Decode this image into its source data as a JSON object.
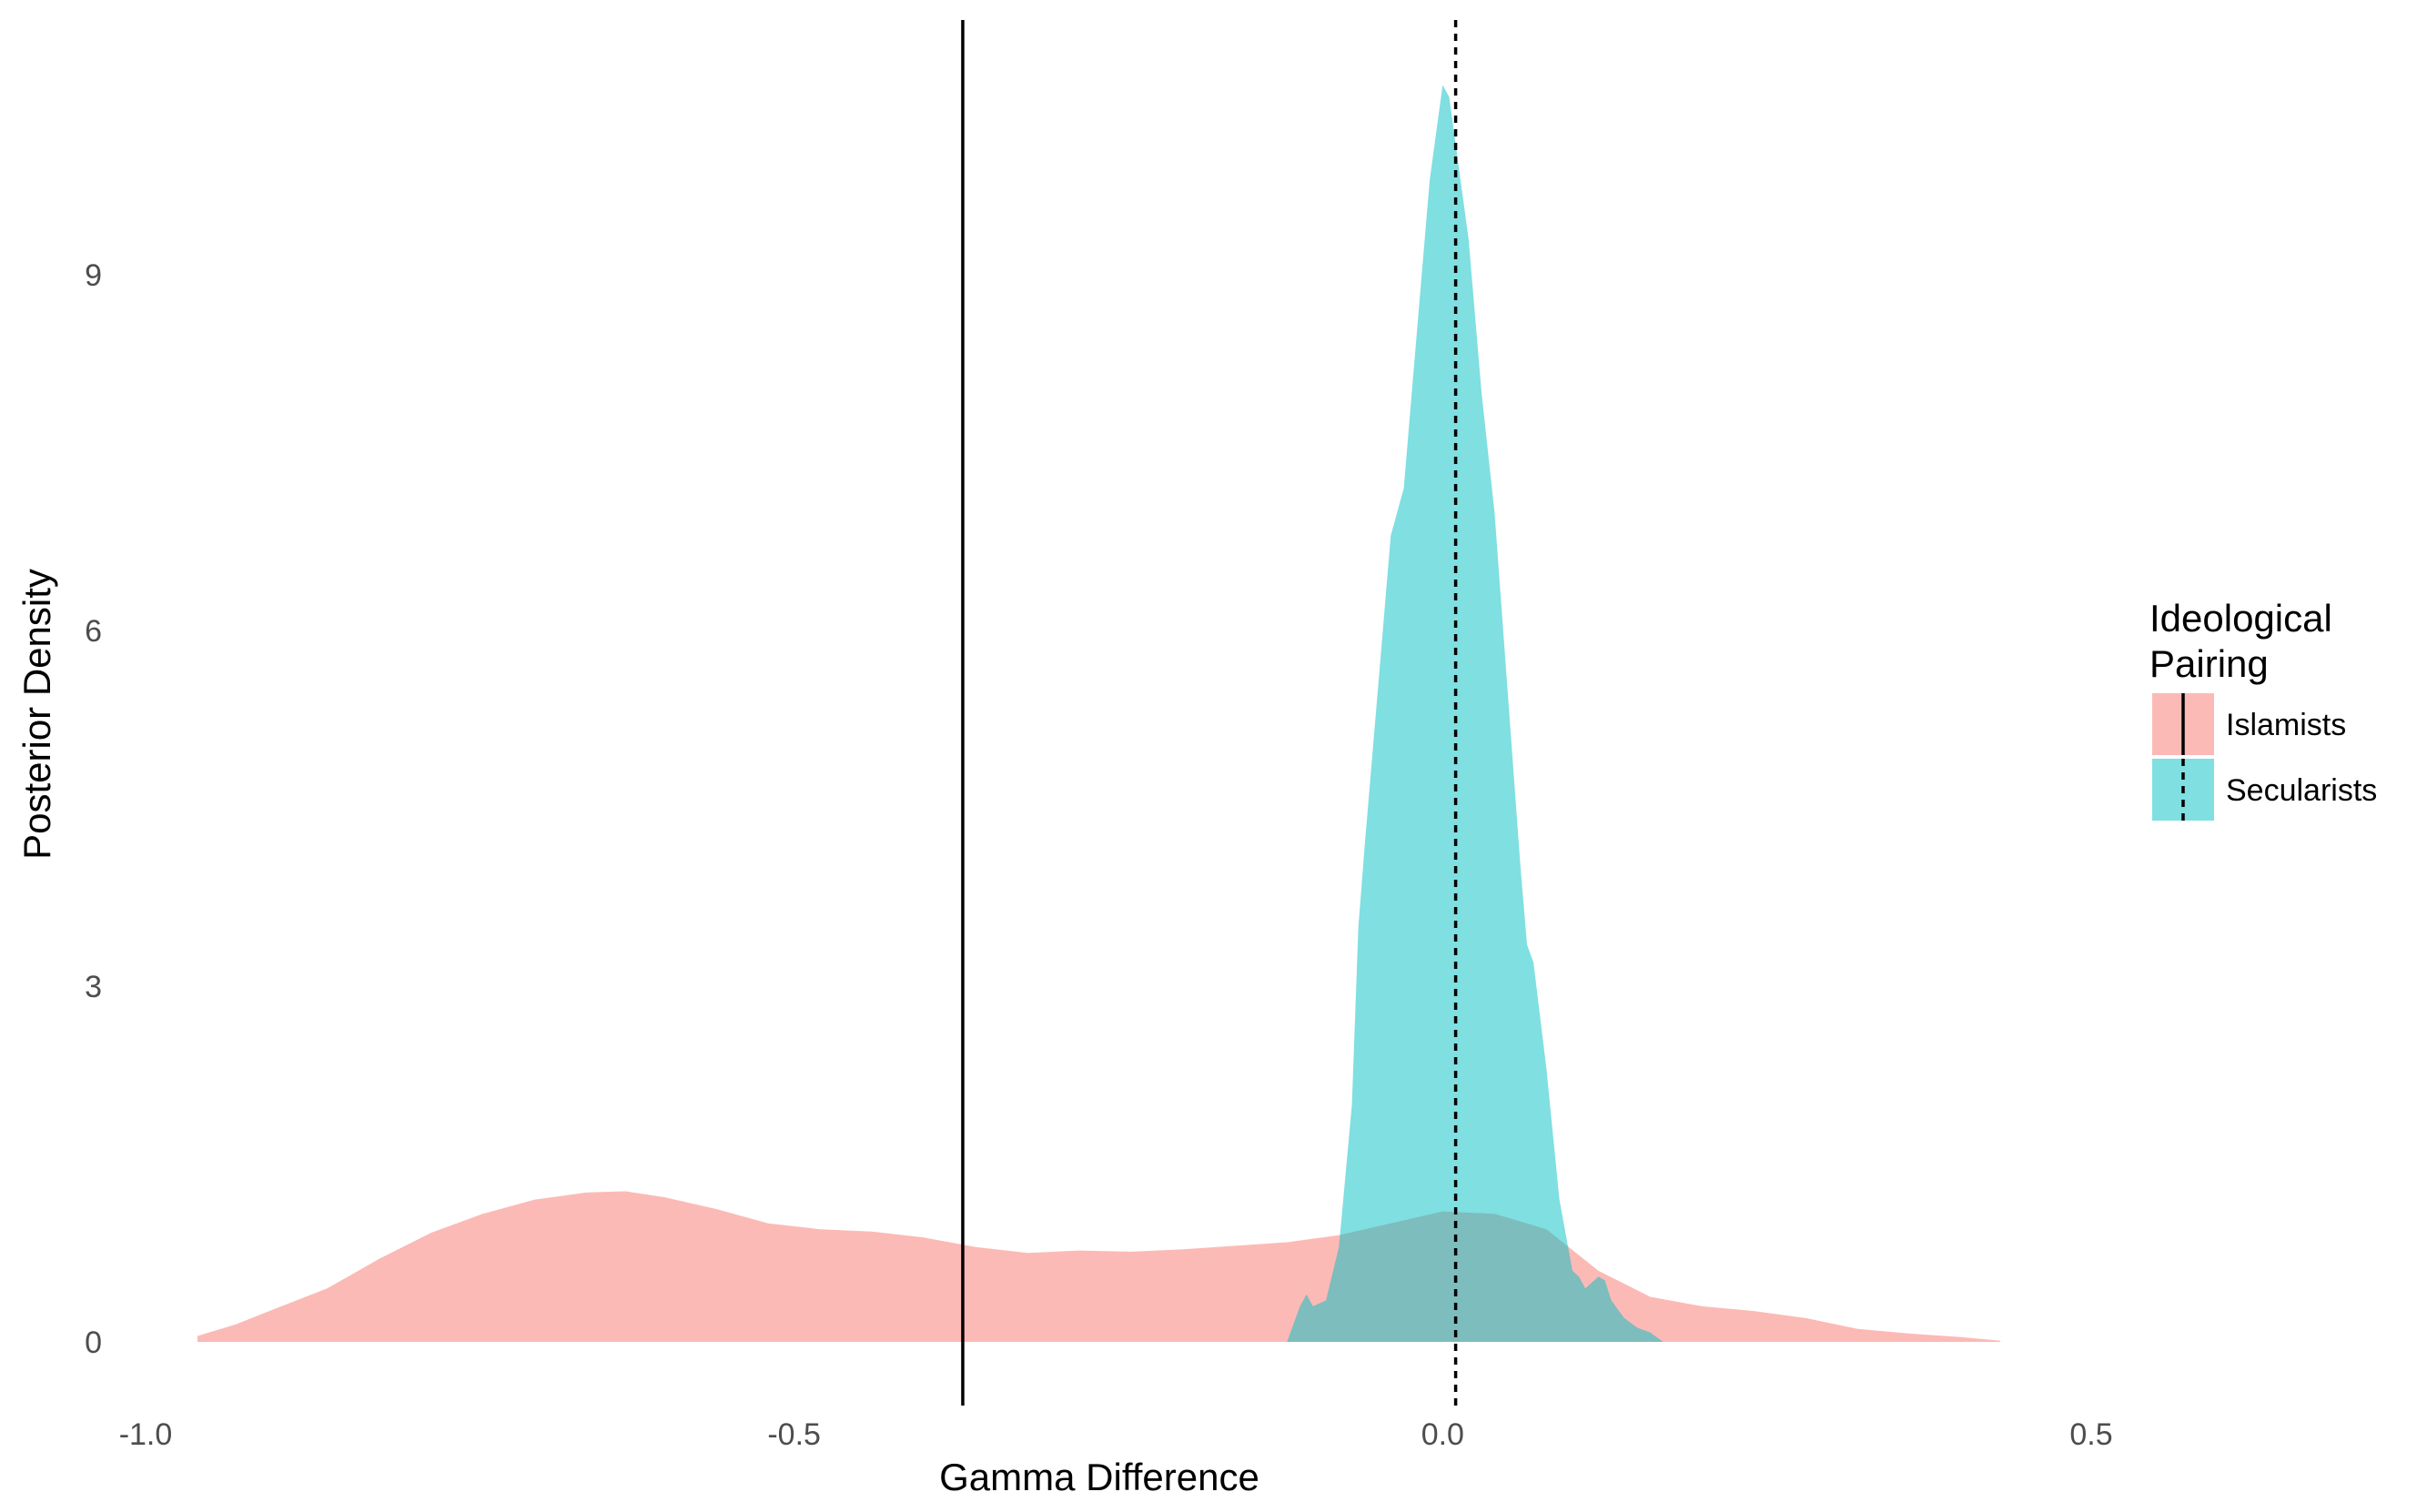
{
  "chart_data": {
    "type": "area",
    "xlabel": "Gamma Difference",
    "ylabel": "Posterior Density",
    "xlim": [
      -1.0,
      0.5
    ],
    "ylim": [
      0,
      10.5
    ],
    "x_ticks": [
      -1.0,
      -0.5,
      0.0,
      0.5
    ],
    "x_tick_labels": [
      "-1.0",
      "-0.5",
      "0.0",
      "0.5"
    ],
    "y_ticks": [
      0,
      3,
      6,
      9
    ],
    "y_tick_labels": [
      "0",
      "3",
      "6",
      "9"
    ],
    "grid": false,
    "legend": {
      "title_lines": [
        "Ideological",
        "Pairing"
      ],
      "placement": "right"
    },
    "series": [
      {
        "name": "Islamists",
        "color": "#F8766D",
        "opacity": 0.5,
        "x": [
          -0.96,
          -0.93,
          -0.9,
          -0.86,
          -0.82,
          -0.78,
          -0.74,
          -0.7,
          -0.66,
          -0.63,
          -0.6,
          -0.56,
          -0.52,
          -0.48,
          -0.44,
          -0.4,
          -0.36,
          -0.32,
          -0.28,
          -0.24,
          -0.2,
          -0.16,
          -0.12,
          -0.08,
          -0.04,
          0.0,
          0.04,
          0.08,
          0.12,
          0.16,
          0.2,
          0.24,
          0.28,
          0.32,
          0.36,
          0.4,
          0.43
        ],
        "y": [
          0.05,
          0.15,
          0.28,
          0.45,
          0.7,
          0.92,
          1.08,
          1.2,
          1.26,
          1.27,
          1.22,
          1.12,
          1.0,
          0.95,
          0.93,
          0.88,
          0.8,
          0.75,
          0.77,
          0.76,
          0.78,
          0.81,
          0.84,
          0.9,
          1.0,
          1.1,
          1.08,
          0.95,
          0.6,
          0.38,
          0.3,
          0.26,
          0.2,
          0.11,
          0.07,
          0.04,
          0.01
        ]
      },
      {
        "name": "Secularists",
        "color": "#00BFC4",
        "opacity": 0.5,
        "x": [
          -0.12,
          -0.11,
          -0.105,
          -0.1,
          -0.09,
          -0.08,
          -0.07,
          -0.065,
          -0.06,
          -0.05,
          -0.04,
          -0.03,
          -0.02,
          -0.01,
          0.0,
          0.005,
          0.01,
          0.02,
          0.03,
          0.04,
          0.05,
          0.06,
          0.065,
          0.07,
          0.08,
          0.09,
          0.1,
          0.105,
          0.11,
          0.12,
          0.125,
          0.13,
          0.14,
          0.15,
          0.16,
          0.17
        ],
        "y": [
          0.0,
          0.3,
          0.4,
          0.3,
          0.35,
          0.8,
          2.0,
          3.5,
          4.2,
          5.5,
          6.8,
          7.2,
          8.5,
          9.8,
          10.6,
          10.5,
          10.1,
          9.3,
          8.0,
          7.0,
          5.5,
          4.0,
          3.35,
          3.2,
          2.3,
          1.2,
          0.6,
          0.55,
          0.45,
          0.55,
          0.52,
          0.35,
          0.2,
          0.12,
          0.08,
          0.0
        ]
      }
    ],
    "reference_lines": [
      {
        "series": "Islamists",
        "x": -0.37,
        "style": "solid"
      },
      {
        "series": "Secularists",
        "x": 0.01,
        "style": "dashed"
      }
    ]
  }
}
